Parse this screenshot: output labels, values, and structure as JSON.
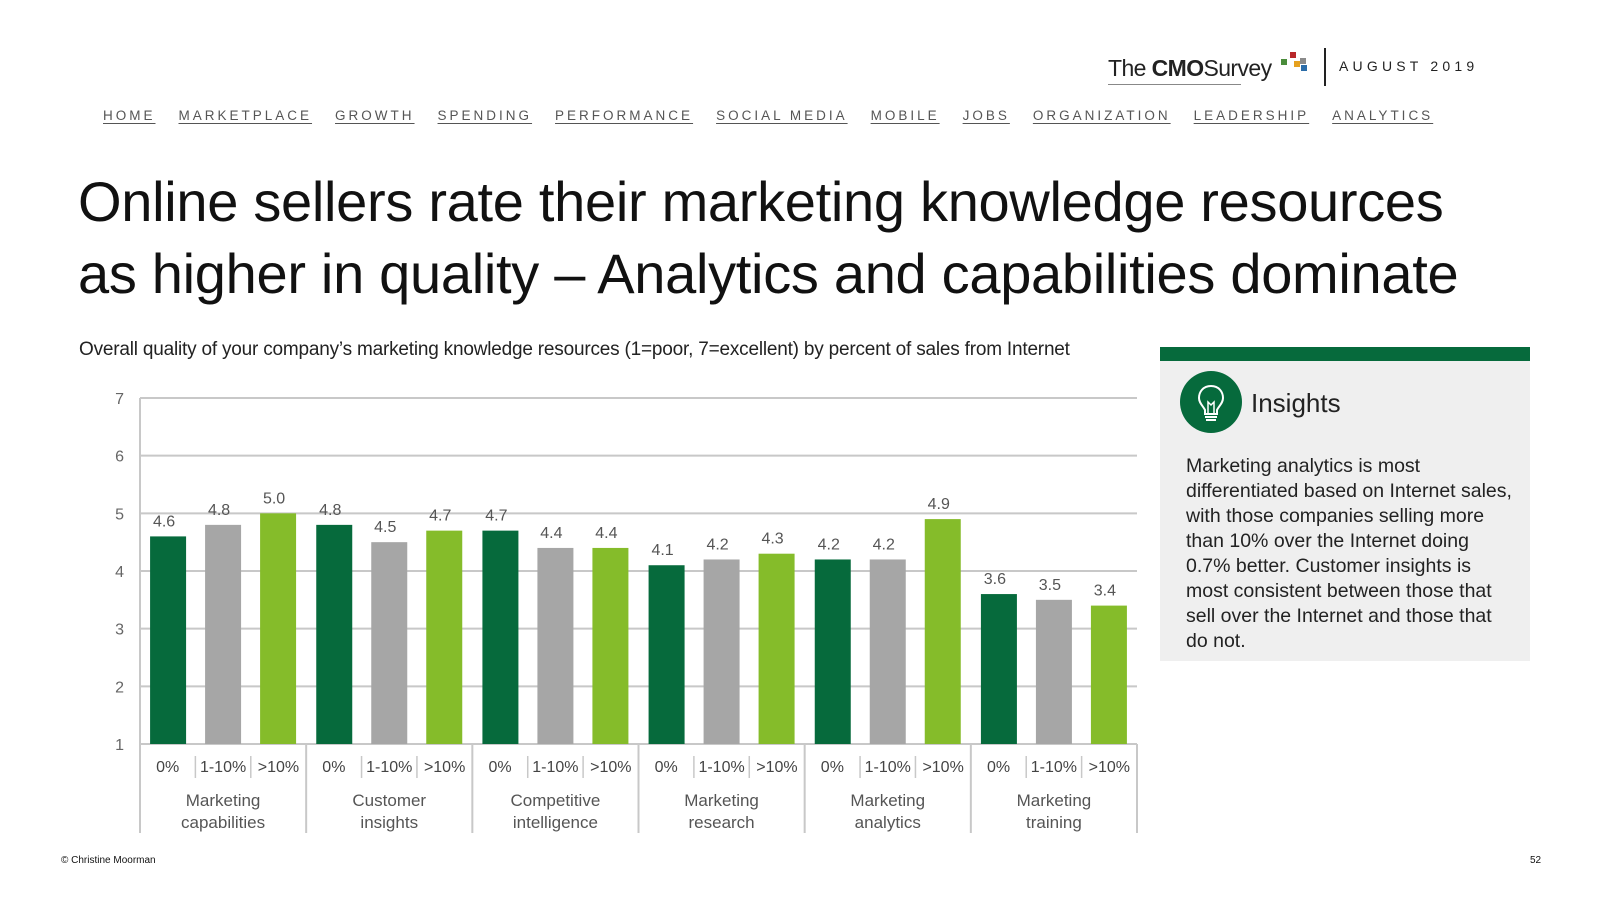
{
  "brand": {
    "logo_prefix": "The",
    "logo_bold": "CMO",
    "logo_suffix": "Survey",
    "dots_colors": [
      "#b8282b",
      "#4a8c3b",
      "#e6a11f",
      "#2b6ca8",
      "#8a8a8a"
    ],
    "date": "AUGUST 2019"
  },
  "nav": {
    "items": [
      "HOME",
      "MARKETPLACE",
      "GROWTH",
      "SPENDING",
      "PERFORMANCE",
      "SOCIAL MEDIA",
      "MOBILE",
      "JOBS",
      "ORGANIZATION",
      "LEADERSHIP",
      "ANALYTICS"
    ]
  },
  "title": {
    "line1": "Online sellers rate their marketing knowledge resources",
    "line2": "as higher in quality – Analytics and capabilities dominate"
  },
  "colors": {
    "dark_green": "#066a3c",
    "gray": "#a6a6a6",
    "light_green": "#85bc2a",
    "grid": "#c8c8c8",
    "panel": "#efefef"
  },
  "chart_data": {
    "type": "bar",
    "title": "Overall quality of your company’s marketing knowledge resources (1=poor, 7=excellent) by percent of sales from Internet",
    "xlabel": "",
    "ylabel": "",
    "ylim": [
      1,
      7
    ],
    "yticks": [
      1,
      2,
      3,
      4,
      5,
      6,
      7
    ],
    "grid": true,
    "subcategories": [
      "0%",
      "1-10%",
      ">10%"
    ],
    "groups": [
      {
        "label": [
          "Marketing",
          "capabilities"
        ],
        "values": [
          4.6,
          4.8,
          5.0
        ]
      },
      {
        "label": [
          "Customer",
          "insights"
        ],
        "values": [
          4.8,
          4.5,
          4.7
        ]
      },
      {
        "label": [
          "Competitive",
          "intelligence"
        ],
        "values": [
          4.7,
          4.4,
          4.4
        ]
      },
      {
        "label": [
          "Marketing",
          "research"
        ],
        "values": [
          4.1,
          4.2,
          4.3
        ]
      },
      {
        "label": [
          "Marketing",
          "analytics"
        ],
        "values": [
          4.2,
          4.2,
          4.9
        ]
      },
      {
        "label": [
          "Marketing",
          "training"
        ],
        "values": [
          3.6,
          3.5,
          3.4
        ]
      }
    ]
  },
  "insights": {
    "title": "Insights",
    "icon": "lightbulb-icon",
    "text": "Marketing analytics is most differentiated based on Internet sales, with those companies selling more than 10% over the Internet doing 0.7% better. Customer insights is most consistent between those that sell over the Internet and those that do not."
  },
  "footer": {
    "copyright": "© Christine Moorman",
    "page": "52"
  }
}
